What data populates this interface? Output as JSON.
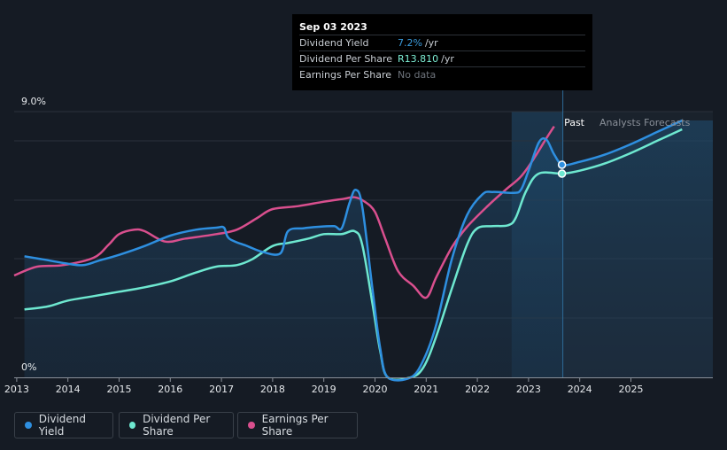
{
  "tooltip": {
    "date": "Sep 03 2023",
    "rows": [
      {
        "label": "Dividend Yield",
        "value": "7.2%",
        "unit": "/yr"
      },
      {
        "label": "Dividend Per Share",
        "value": "R13.810",
        "unit": "/yr"
      },
      {
        "label": "Earnings Per Share",
        "value": "No data",
        "unit": ""
      }
    ]
  },
  "legend": [
    {
      "label": "Dividend Yield",
      "color": "#2e8fe0"
    },
    {
      "label": "Dividend Per Share",
      "color": "#6ee8d0"
    },
    {
      "label": "Earnings Per Share",
      "color": "#d94f8e"
    }
  ],
  "chart_data": {
    "type": "line",
    "title": "",
    "y_tick_labels": [
      "9.0%",
      "0%"
    ],
    "ylim": [
      0,
      9
    ],
    "xlim": [
      2012.95,
      2026.0
    ],
    "x_tick_labels": [
      "2013",
      "2014",
      "2015",
      "2016",
      "2017",
      "2018",
      "2019",
      "2020",
      "2021",
      "2022",
      "2023",
      "2024",
      "2025"
    ],
    "region_labels": {
      "past": "Past",
      "forecast": "Analysts Forecasts"
    },
    "past_end": 2023.67,
    "highlight_start": 2022.67,
    "series": [
      {
        "name": "Dividend Yield",
        "color": "#2e8fe0",
        "points": [
          [
            2013.15,
            4.1
          ],
          [
            2013.5,
            4.0
          ],
          [
            2014.0,
            3.85
          ],
          [
            2014.3,
            3.8
          ],
          [
            2014.6,
            3.95
          ],
          [
            2015.0,
            4.15
          ],
          [
            2015.5,
            4.45
          ],
          [
            2016.0,
            4.8
          ],
          [
            2016.5,
            5.0
          ],
          [
            2016.9,
            5.07
          ],
          [
            2017.05,
            5.07
          ],
          [
            2017.15,
            4.7
          ],
          [
            2017.5,
            4.45
          ],
          [
            2017.8,
            4.25
          ],
          [
            2018.15,
            4.2
          ],
          [
            2018.3,
            4.95
          ],
          [
            2018.6,
            5.05
          ],
          [
            2018.9,
            5.1
          ],
          [
            2019.2,
            5.12
          ],
          [
            2019.35,
            5.05
          ],
          [
            2019.5,
            5.9
          ],
          [
            2019.62,
            6.35
          ],
          [
            2019.75,
            5.8
          ],
          [
            2019.95,
            3.0
          ],
          [
            2020.1,
            1.0
          ],
          [
            2020.25,
            0.0
          ],
          [
            2020.7,
            0.0
          ],
          [
            2020.95,
            0.6
          ],
          [
            2021.2,
            1.8
          ],
          [
            2021.5,
            4.0
          ],
          [
            2021.8,
            5.5
          ],
          [
            2022.1,
            6.2
          ],
          [
            2022.3,
            6.28
          ],
          [
            2022.7,
            6.25
          ],
          [
            2022.85,
            6.35
          ],
          [
            2023.0,
            7.0
          ],
          [
            2023.2,
            7.95
          ],
          [
            2023.35,
            8.05
          ],
          [
            2023.5,
            7.55
          ],
          [
            2023.67,
            7.2
          ],
          [
            2024.0,
            7.3
          ],
          [
            2024.5,
            7.55
          ],
          [
            2025.0,
            7.9
          ],
          [
            2025.5,
            8.3
          ],
          [
            2026.0,
            8.7
          ]
        ]
      },
      {
        "name": "Dividend Per Share",
        "color": "#6ee8d0",
        "points": [
          [
            2013.15,
            2.3
          ],
          [
            2013.6,
            2.4
          ],
          [
            2014.0,
            2.6
          ],
          [
            2014.5,
            2.75
          ],
          [
            2015.0,
            2.9
          ],
          [
            2015.5,
            3.05
          ],
          [
            2016.0,
            3.25
          ],
          [
            2016.5,
            3.55
          ],
          [
            2016.9,
            3.75
          ],
          [
            2017.3,
            3.8
          ],
          [
            2017.6,
            4.0
          ],
          [
            2018.0,
            4.45
          ],
          [
            2018.3,
            4.55
          ],
          [
            2018.7,
            4.7
          ],
          [
            2019.0,
            4.85
          ],
          [
            2019.35,
            4.85
          ],
          [
            2019.6,
            4.95
          ],
          [
            2019.75,
            4.5
          ],
          [
            2019.95,
            2.5
          ],
          [
            2020.1,
            0.9
          ],
          [
            2020.25,
            0.0
          ],
          [
            2020.7,
            0.0
          ],
          [
            2020.95,
            0.35
          ],
          [
            2021.2,
            1.4
          ],
          [
            2021.5,
            3.0
          ],
          [
            2021.8,
            4.5
          ],
          [
            2022.0,
            5.05
          ],
          [
            2022.3,
            5.12
          ],
          [
            2022.6,
            5.15
          ],
          [
            2022.75,
            5.4
          ],
          [
            2022.95,
            6.3
          ],
          [
            2023.2,
            6.9
          ],
          [
            2023.67,
            6.9
          ],
          [
            2024.0,
            7.0
          ],
          [
            2024.5,
            7.25
          ],
          [
            2025.0,
            7.6
          ],
          [
            2025.5,
            8.0
          ],
          [
            2026.0,
            8.4
          ]
        ]
      },
      {
        "name": "Earnings Per Share",
        "color": "#d94f8e",
        "points": [
          [
            2012.95,
            3.45
          ],
          [
            2013.4,
            3.75
          ],
          [
            2013.9,
            3.8
          ],
          [
            2014.5,
            4.05
          ],
          [
            2014.8,
            4.5
          ],
          [
            2015.0,
            4.85
          ],
          [
            2015.3,
            5.0
          ],
          [
            2015.5,
            4.95
          ],
          [
            2015.9,
            4.6
          ],
          [
            2016.3,
            4.7
          ],
          [
            2016.9,
            4.85
          ],
          [
            2017.3,
            5.0
          ],
          [
            2017.7,
            5.4
          ],
          [
            2018.0,
            5.7
          ],
          [
            2018.5,
            5.8
          ],
          [
            2019.0,
            5.95
          ],
          [
            2019.4,
            6.05
          ],
          [
            2019.6,
            6.1
          ],
          [
            2019.8,
            5.95
          ],
          [
            2020.0,
            5.6
          ],
          [
            2020.2,
            4.7
          ],
          [
            2020.45,
            3.6
          ],
          [
            2020.75,
            3.1
          ],
          [
            2021.0,
            2.7
          ],
          [
            2021.2,
            3.4
          ],
          [
            2021.5,
            4.4
          ],
          [
            2021.8,
            5.1
          ],
          [
            2022.2,
            5.8
          ],
          [
            2022.55,
            6.35
          ],
          [
            2022.85,
            6.8
          ],
          [
            2023.1,
            7.4
          ],
          [
            2023.35,
            8.1
          ],
          [
            2023.5,
            8.5
          ]
        ]
      }
    ]
  }
}
